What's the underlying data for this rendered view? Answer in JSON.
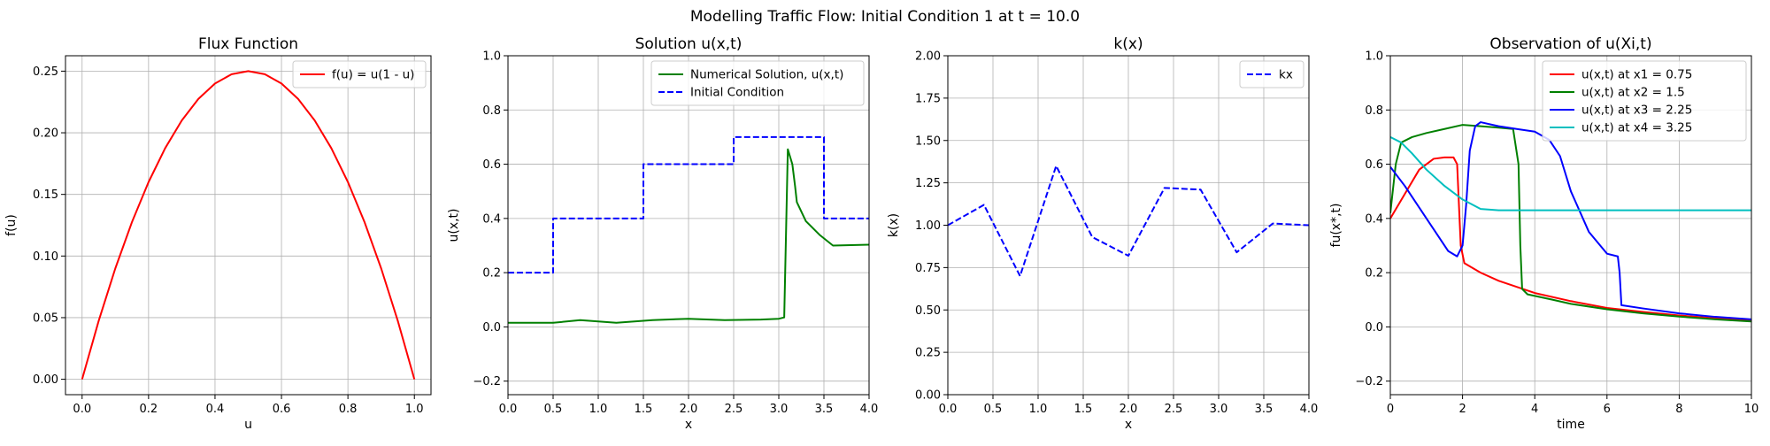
{
  "figure": {
    "suptitle": "Modelling Traffic Flow: Initial Condition 1 at t = 10.0"
  },
  "chart_data": [
    {
      "type": "line",
      "title": "Flux Function",
      "xlabel": "u",
      "ylabel": "f(u)",
      "xlim": [
        -0.05,
        1.05
      ],
      "ylim": [
        -0.0125,
        0.2625
      ],
      "xticks": [
        0.0,
        0.2,
        0.4,
        0.6,
        0.8,
        1.0
      ],
      "yticks": [
        0.0,
        0.05,
        0.1,
        0.15,
        0.2,
        0.25
      ],
      "xtick_labels": [
        "0.0",
        "0.2",
        "0.4",
        "0.6",
        "0.8",
        "1.0"
      ],
      "ytick_labels": [
        "0.00",
        "0.05",
        "0.10",
        "0.15",
        "0.20",
        "0.25"
      ],
      "grid": true,
      "legend": "top-right",
      "series": [
        {
          "name": "f(u) = u(1 - u)",
          "color": "#ff0000",
          "dash": "solid",
          "x": [
            0,
            0.05,
            0.1,
            0.15,
            0.2,
            0.25,
            0.3,
            0.35,
            0.4,
            0.45,
            0.5,
            0.55,
            0.6,
            0.65,
            0.7,
            0.75,
            0.8,
            0.85,
            0.9,
            0.95,
            1.0
          ],
          "y": [
            0,
            0.0475,
            0.09,
            0.1275,
            0.16,
            0.1875,
            0.21,
            0.2275,
            0.24,
            0.2475,
            0.25,
            0.2475,
            0.24,
            0.2275,
            0.21,
            0.1875,
            0.16,
            0.1275,
            0.09,
            0.0475,
            0
          ]
        }
      ]
    },
    {
      "type": "line",
      "title": "Solution u(x,t)",
      "xlabel": "x",
      "ylabel": "u(x,t)",
      "xlim": [
        0,
        4
      ],
      "ylim": [
        -0.25,
        1.0
      ],
      "xticks": [
        0.0,
        0.5,
        1.0,
        1.5,
        2.0,
        2.5,
        3.0,
        3.5,
        4.0
      ],
      "yticks": [
        -0.2,
        0.0,
        0.2,
        0.4,
        0.6,
        0.8,
        1.0
      ],
      "xtick_labels": [
        "0.0",
        "0.5",
        "1.0",
        "1.5",
        "2.0",
        "2.5",
        "3.0",
        "3.5",
        "4.0"
      ],
      "ytick_labels": [
        "−0.2",
        "0.0",
        "0.2",
        "0.4",
        "0.6",
        "0.8",
        "1.0"
      ],
      "grid": true,
      "legend": "top-right",
      "series": [
        {
          "name": "Numerical Solution, u(x,t)",
          "color": "#008000",
          "dash": "solid",
          "x": [
            0,
            0.5,
            0.8,
            1.2,
            1.6,
            2.0,
            2.4,
            2.8,
            3.0,
            3.06,
            3.1,
            3.15,
            3.18,
            3.2,
            3.3,
            3.45,
            3.6,
            4.0
          ],
          "y": [
            0.015,
            0.015,
            0.025,
            0.015,
            0.025,
            0.03,
            0.025,
            0.027,
            0.03,
            0.035,
            0.655,
            0.6,
            0.52,
            0.46,
            0.39,
            0.34,
            0.3,
            0.303
          ]
        },
        {
          "name": "Initial Condition",
          "color": "#0000ff",
          "dash": "dashed",
          "x": [
            0,
            0.5,
            0.5,
            1.5,
            1.5,
            2.5,
            2.5,
            3.5,
            3.5,
            4.0
          ],
          "y": [
            0.2,
            0.2,
            0.4,
            0.4,
            0.6,
            0.6,
            0.7,
            0.7,
            0.4,
            0.4
          ]
        }
      ]
    },
    {
      "type": "line",
      "title": "k(x)",
      "xlabel": "x",
      "ylabel": "k(x)",
      "xlim": [
        0,
        4
      ],
      "ylim": [
        0,
        2.0
      ],
      "xticks": [
        0.0,
        0.5,
        1.0,
        1.5,
        2.0,
        2.5,
        3.0,
        3.5,
        4.0
      ],
      "yticks": [
        0.0,
        0.25,
        0.5,
        0.75,
        1.0,
        1.25,
        1.5,
        1.75,
        2.0
      ],
      "xtick_labels": [
        "0.0",
        "0.5",
        "1.0",
        "1.5",
        "2.0",
        "2.5",
        "3.0",
        "3.5",
        "4.0"
      ],
      "ytick_labels": [
        "0.00",
        "0.25",
        "0.50",
        "0.75",
        "1.00",
        "1.25",
        "1.50",
        "1.75",
        "2.00"
      ],
      "grid": true,
      "legend": "top-right",
      "series": [
        {
          "name": "kx",
          "color": "#0000ff",
          "dash": "dashed",
          "x": [
            0,
            0.4,
            0.8,
            1.2,
            1.6,
            2.0,
            2.4,
            2.8,
            3.2,
            3.6,
            4.0
          ],
          "y": [
            1.0,
            1.12,
            0.7,
            1.35,
            0.93,
            0.82,
            1.22,
            1.21,
            0.84,
            1.01,
            1.0
          ]
        }
      ]
    },
    {
      "type": "line",
      "title": "Observation of u(Xi,t)",
      "xlabel": "time",
      "ylabel": "fu(x*,t)",
      "xlim": [
        0,
        10
      ],
      "ylim": [
        -0.25,
        1.0
      ],
      "xticks": [
        0,
        2,
        4,
        6,
        8,
        10
      ],
      "yticks": [
        -0.2,
        0.0,
        0.2,
        0.4,
        0.6,
        0.8,
        1.0
      ],
      "xtick_labels": [
        "0",
        "2",
        "4",
        "6",
        "8",
        "10"
      ],
      "ytick_labels": [
        "−0.2",
        "0.0",
        "0.2",
        "0.4",
        "0.6",
        "0.8",
        "1.0"
      ],
      "grid": true,
      "legend": "top-right",
      "series": [
        {
          "name": "u(x,t) at x1 = 0.75",
          "color": "#ff0000",
          "dash": "solid",
          "x": [
            0,
            0.4,
            0.8,
            1.2,
            1.5,
            1.75,
            1.85,
            1.95,
            2.05,
            2.5,
            3,
            4,
            5,
            6,
            7,
            8,
            9,
            10
          ],
          "y": [
            0.4,
            0.49,
            0.58,
            0.62,
            0.625,
            0.625,
            0.6,
            0.3,
            0.235,
            0.2,
            0.17,
            0.125,
            0.095,
            0.07,
            0.055,
            0.042,
            0.032,
            0.025
          ]
        },
        {
          "name": "u(x,t) at x2 = 1.5",
          "color": "#008000",
          "dash": "solid",
          "x": [
            0,
            0.15,
            0.3,
            0.6,
            1,
            1.5,
            2,
            2.5,
            3,
            3.4,
            3.55,
            3.6,
            3.65,
            3.8,
            4.5,
            5,
            6,
            7,
            8,
            9,
            10
          ],
          "y": [
            0.42,
            0.6,
            0.68,
            0.7,
            0.715,
            0.73,
            0.745,
            0.74,
            0.735,
            0.73,
            0.6,
            0.3,
            0.14,
            0.12,
            0.1,
            0.085,
            0.065,
            0.05,
            0.038,
            0.028,
            0.02
          ]
        },
        {
          "name": "u(x,t) at x3 = 2.25",
          "color": "#0000ff",
          "dash": "solid",
          "x": [
            0,
            0.4,
            0.8,
            1.2,
            1.6,
            1.85,
            2.0,
            2.1,
            2.2,
            2.35,
            2.5,
            3,
            3.5,
            4,
            4.4,
            4.7,
            5,
            5.5,
            6,
            6.3,
            6.35,
            6.4,
            7,
            8,
            9,
            10
          ],
          "y": [
            0.59,
            0.52,
            0.44,
            0.36,
            0.28,
            0.26,
            0.3,
            0.45,
            0.65,
            0.74,
            0.755,
            0.74,
            0.73,
            0.72,
            0.69,
            0.63,
            0.5,
            0.35,
            0.27,
            0.26,
            0.2,
            0.08,
            0.068,
            0.05,
            0.037,
            0.028
          ]
        },
        {
          "name": "u(x,t) at x4 = 3.25",
          "color": "#00bfbf",
          "dash": "solid",
          "x": [
            0,
            0.3,
            0.6,
            1,
            1.5,
            2,
            2.5,
            3,
            4,
            5,
            6,
            7,
            8,
            9,
            10
          ],
          "y": [
            0.7,
            0.68,
            0.64,
            0.58,
            0.52,
            0.47,
            0.435,
            0.43,
            0.43,
            0.43,
            0.43,
            0.43,
            0.43,
            0.43,
            0.43
          ]
        }
      ]
    }
  ]
}
